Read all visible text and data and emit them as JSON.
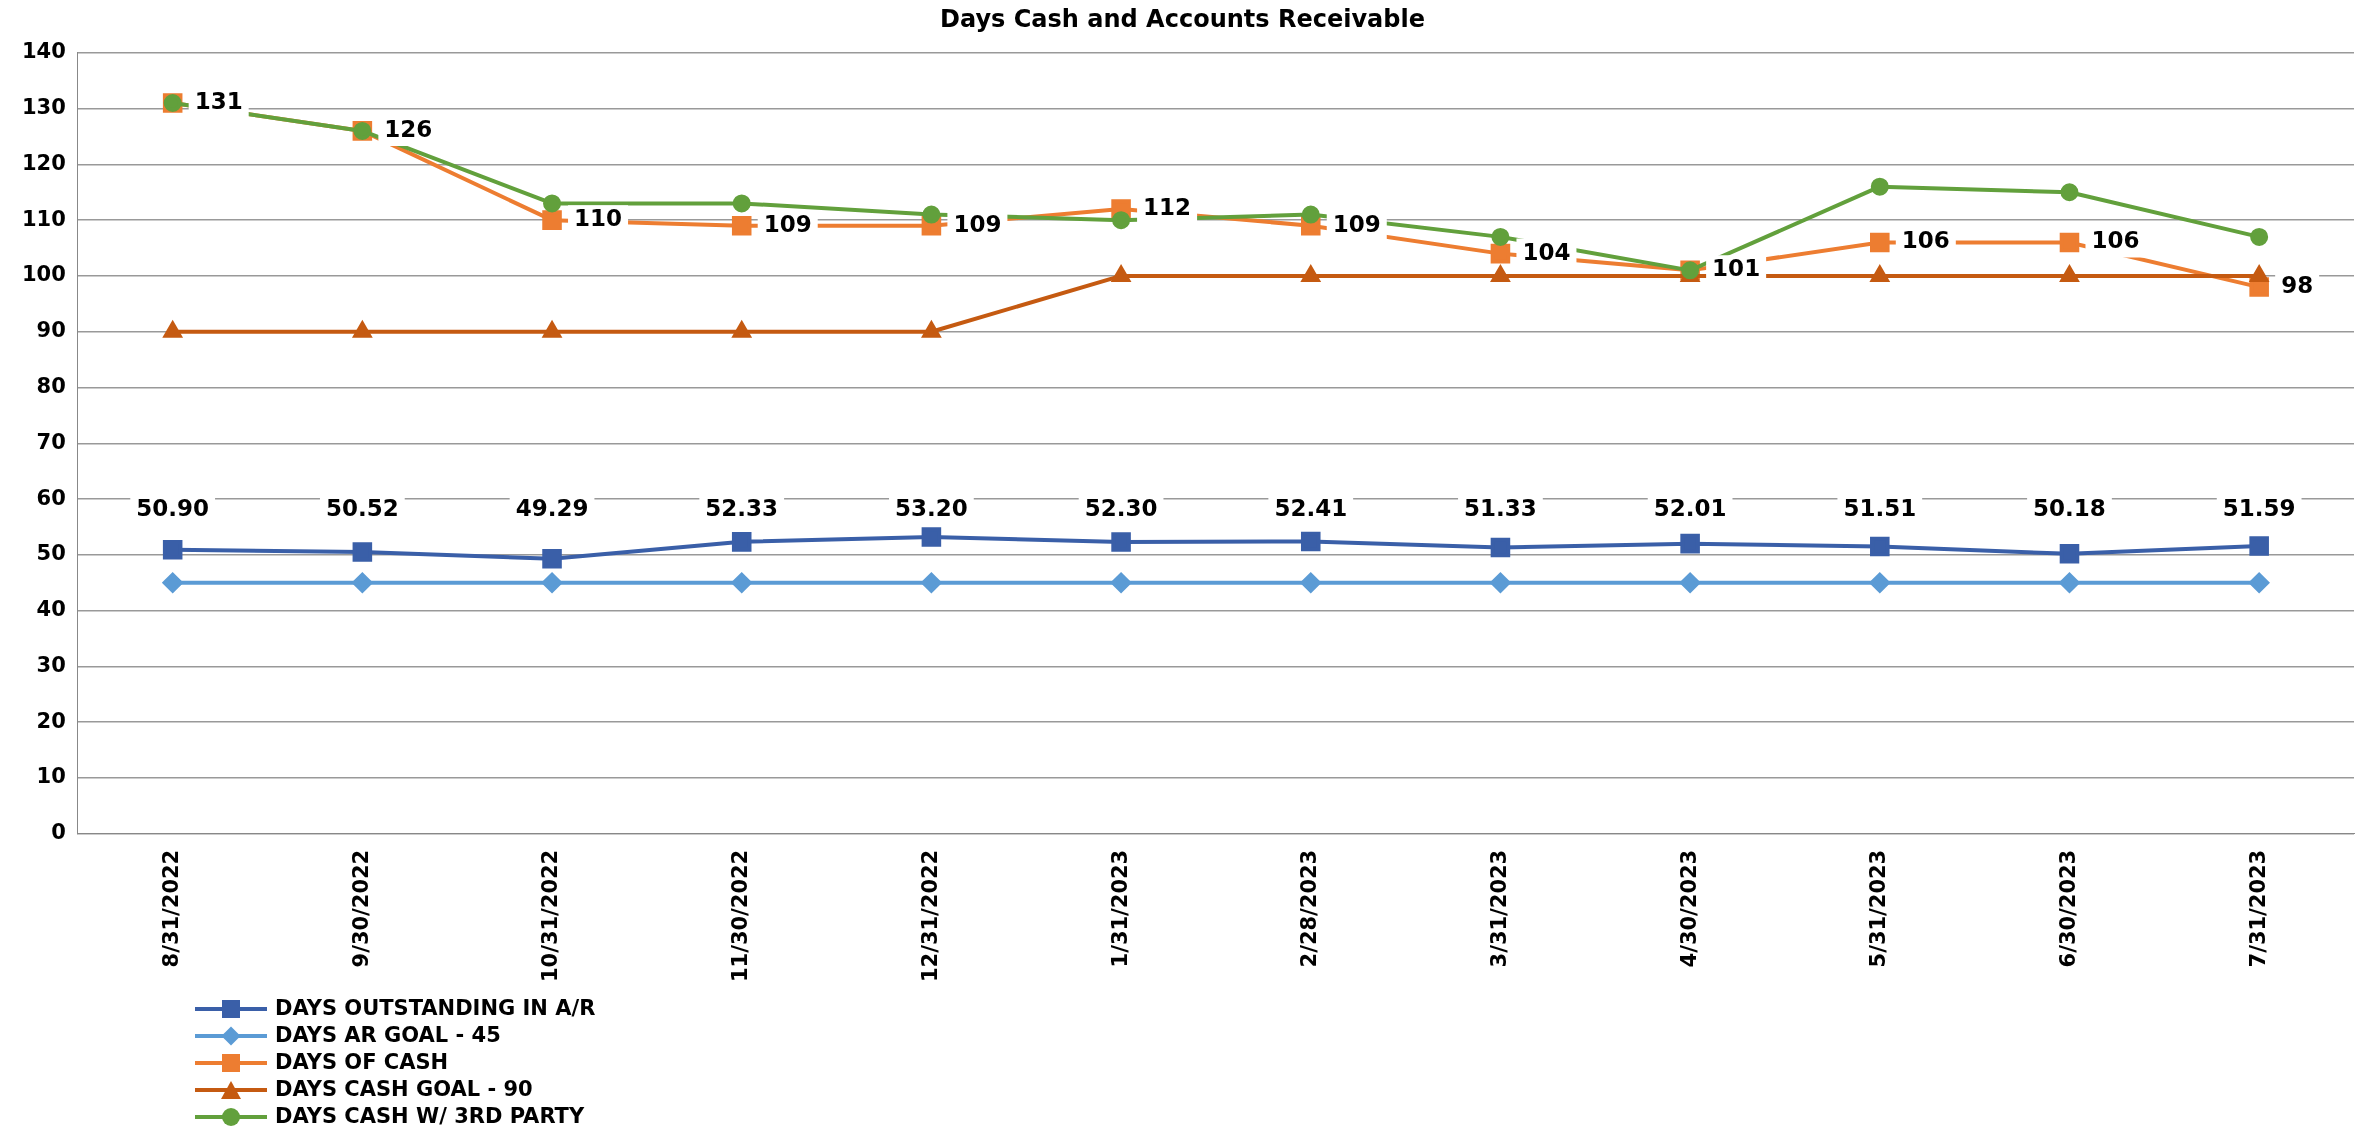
{
  "chart_data": {
    "type": "line",
    "title": "Days Cash and Accounts Receivable",
    "categories": [
      "8/31/2022",
      "9/30/2022",
      "10/31/2022",
      "11/30/2022",
      "12/31/2022",
      "1/31/2023",
      "2/28/2023",
      "3/31/2023",
      "4/30/2023",
      "5/31/2023",
      "6/30/2023",
      "7/31/2023"
    ],
    "ylim": [
      0,
      140
    ],
    "yticks": [
      0,
      10,
      20,
      30,
      40,
      50,
      60,
      70,
      80,
      90,
      100,
      110,
      120,
      130,
      140
    ],
    "grid": "y",
    "legend": "bottom left",
    "series": [
      {
        "name": "DAYS OUTSTANDING IN A/R",
        "color": "#3a5fa8",
        "marker": "square",
        "values": [
          50.9,
          50.52,
          49.29,
          52.33,
          53.2,
          52.3,
          52.41,
          51.33,
          52.01,
          51.51,
          50.18,
          51.59
        ],
        "value_labels": [
          "50.90",
          "50.52",
          "49.29",
          "52.33",
          "53.20",
          "52.30",
          "52.41",
          "51.33",
          "52.01",
          "51.51",
          "50.18",
          "51.59"
        ]
      },
      {
        "name": "DAYS AR GOAL - 45",
        "color": "#5b9bd5",
        "marker": "diamond",
        "values": [
          45,
          45,
          45,
          45,
          45,
          45,
          45,
          45,
          45,
          45,
          45,
          45
        ]
      },
      {
        "name": "DAYS OF CASH",
        "color": "#ed7d31",
        "marker": "square",
        "values": [
          131,
          126,
          110,
          109,
          109,
          112,
          109,
          104,
          101,
          106,
          106,
          98
        ],
        "value_labels": [
          "131",
          "126",
          "110",
          "109",
          "109",
          "112",
          "109",
          "104",
          "101",
          "106",
          "106",
          "98"
        ]
      },
      {
        "name": "DAYS CASH GOAL - 90",
        "color": "#c55a11",
        "marker": "triangle",
        "values": [
          90,
          90,
          90,
          90,
          90,
          100,
          100,
          100,
          100,
          100,
          100,
          100
        ]
      },
      {
        "name": "DAYS CASH W/ 3RD PARTY",
        "color": "#62a03c",
        "marker": "circle",
        "values": [
          131,
          126,
          113,
          113,
          111,
          110,
          111,
          107,
          101,
          116,
          115,
          107
        ]
      }
    ]
  }
}
